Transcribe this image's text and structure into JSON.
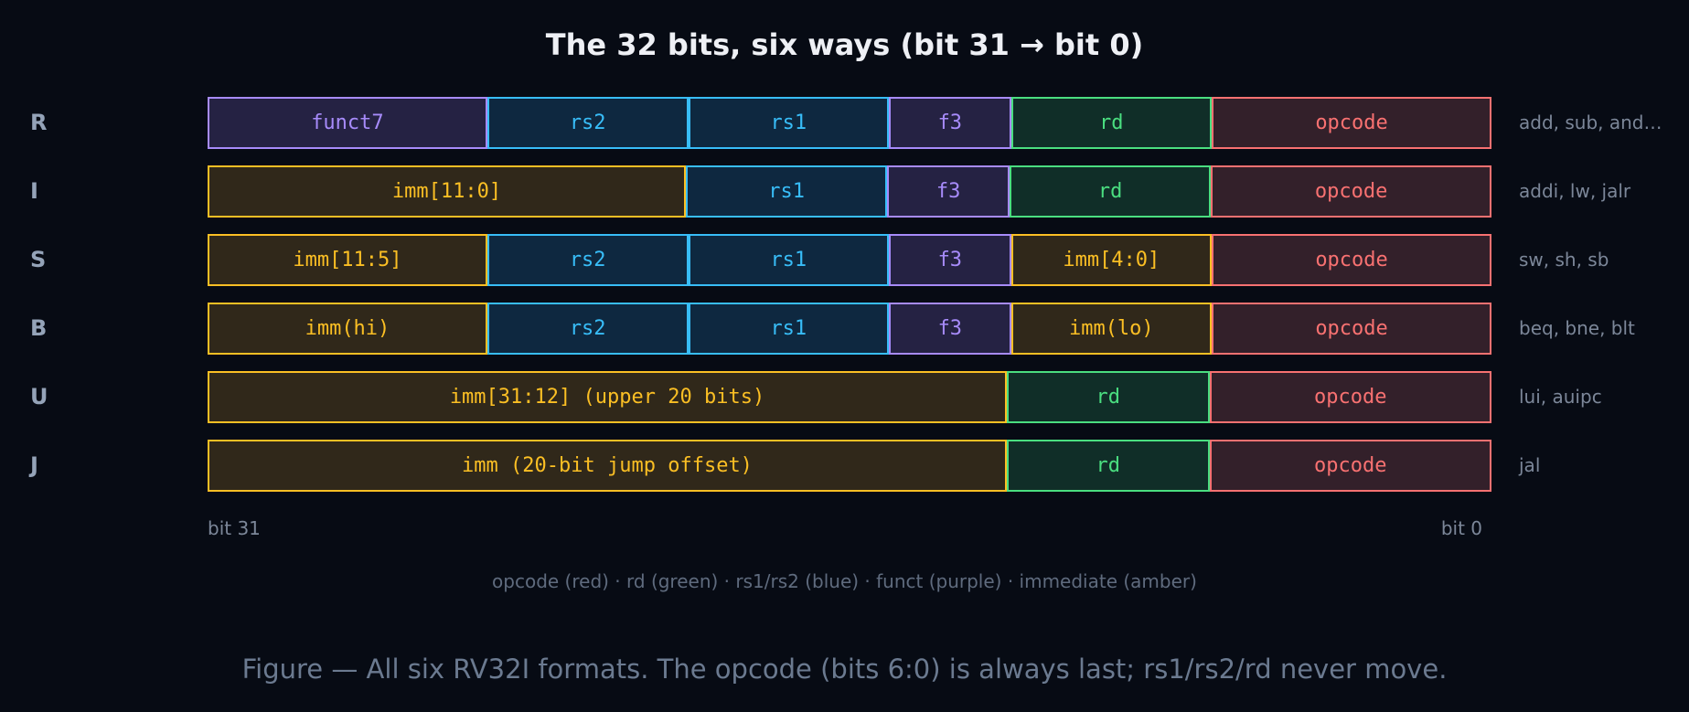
{
  "title": "The 32 bits, six ways (bit 31 → bit 0)",
  "rows": [
    {
      "label": "R",
      "fields": [
        "funct7",
        "rs2",
        "rs1",
        "f3",
        "rd",
        "opcode"
      ],
      "examples": "add, sub, and…"
    },
    {
      "label": "I",
      "fields": [
        "imm[11:0]",
        "rs1",
        "f3",
        "rd",
        "opcode"
      ],
      "examples": "addi, lw, jalr"
    },
    {
      "label": "S",
      "fields": [
        "imm[11:5]",
        "rs2",
        "rs1",
        "f3",
        "imm[4:0]",
        "opcode"
      ],
      "examples": "sw, sh, sb"
    },
    {
      "label": "B",
      "fields": [
        "imm(hi)",
        "rs2",
        "rs1",
        "f3",
        "imm(lo)",
        "opcode"
      ],
      "examples": "beq, bne, blt"
    },
    {
      "label": "U",
      "fields": [
        "imm[31:12] (upper 20 bits)",
        "rd",
        "opcode"
      ],
      "examples": "lui, auipc"
    },
    {
      "label": "J",
      "fields": [
        "imm (20-bit jump offset)",
        "rd",
        "opcode"
      ],
      "examples": "jal"
    }
  ],
  "axis": {
    "left": "bit 31",
    "right": "bit 0"
  },
  "legend": "opcode (red) · rd (green) · rs1/rs2 (blue) · funct (purple) · immediate (amber)",
  "caption": "Figure — All six RV32I formats. The opcode (bits 6:0) is always last; rs1/rs2/rd never move."
}
